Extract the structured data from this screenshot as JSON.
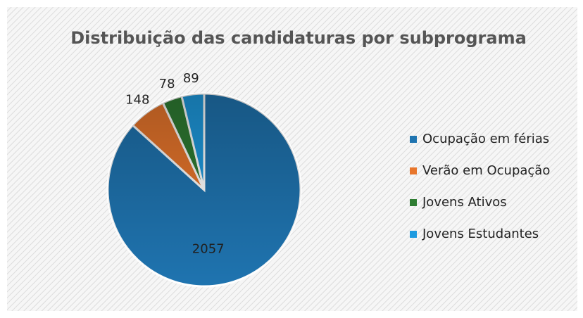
{
  "chart_data": {
    "type": "pie",
    "title": "Distribuição das candidaturas por subprograma",
    "categories": [
      "Ocupação em férias",
      "Verão em Ocupação",
      "Jovens Ativos",
      "Jovens Estudantes"
    ],
    "values": [
      2057,
      148,
      78,
      89
    ],
    "colors": [
      "#1f74b0",
      "#e8762c",
      "#2f7d33",
      "#1e9be0"
    ],
    "legend": "right"
  }
}
